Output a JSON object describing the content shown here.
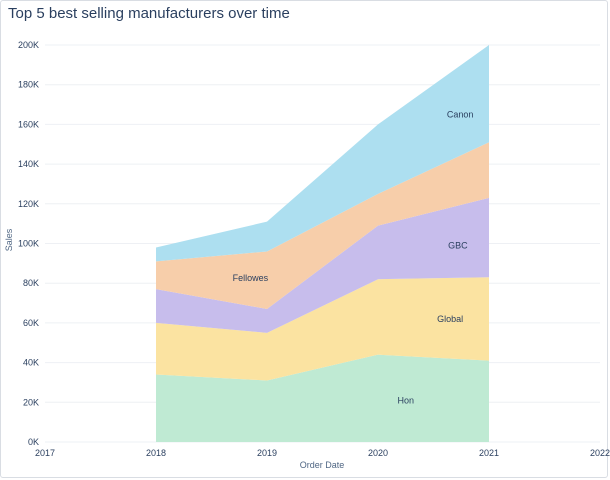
{
  "title": "Top 5 best selling manufacturers over time",
  "chart_data": {
    "type": "area",
    "stacked": true,
    "title": "Top 5 best selling manufacturers over time",
    "xlabel": "Order Date",
    "ylabel": "Sales",
    "x": [
      2018,
      2019,
      2020,
      2021
    ],
    "xlim": [
      2017,
      2022
    ],
    "x_ticks": [
      "2017",
      "2018",
      "2019",
      "2020",
      "2021",
      "2022"
    ],
    "ylim": [
      0,
      200000
    ],
    "y_ticks": [
      {
        "value": 0,
        "label": "0K"
      },
      {
        "value": 20000,
        "label": "20K"
      },
      {
        "value": 40000,
        "label": "40K"
      },
      {
        "value": 60000,
        "label": "60K"
      },
      {
        "value": 80000,
        "label": "80K"
      },
      {
        "value": 100000,
        "label": "100K"
      },
      {
        "value": 120000,
        "label": "120K"
      },
      {
        "value": 140000,
        "label": "140K"
      },
      {
        "value": 160000,
        "label": "160K"
      },
      {
        "value": 180000,
        "label": "180K"
      },
      {
        "value": 200000,
        "label": "200K"
      }
    ],
    "grid": true,
    "legend": "none",
    "series": [
      {
        "name": "Hon",
        "values": [
          34000,
          31000,
          44000,
          41000
        ],
        "color": "#bfead3",
        "label_at": [
          2020.25,
          21000
        ]
      },
      {
        "name": "Global",
        "values": [
          26000,
          24000,
          38000,
          42000
        ],
        "color": "#fbe3a1",
        "label_at": [
          2020.65,
          62000
        ]
      },
      {
        "name": "GBC",
        "values": [
          17000,
          12000,
          27000,
          40000
        ],
        "color": "#c7bdec",
        "label_at": [
          2020.72,
          99000
        ]
      },
      {
        "name": "Fellowes",
        "values": [
          14000,
          29000,
          16000,
          28000
        ],
        "color": "#f7ceaa",
        "label_at": [
          2018.85,
          82500
        ]
      },
      {
        "name": "Canon",
        "values": [
          7000,
          15000,
          35000,
          49000
        ],
        "color": "#addff0",
        "label_at": [
          2020.74,
          165000
        ]
      }
    ]
  }
}
